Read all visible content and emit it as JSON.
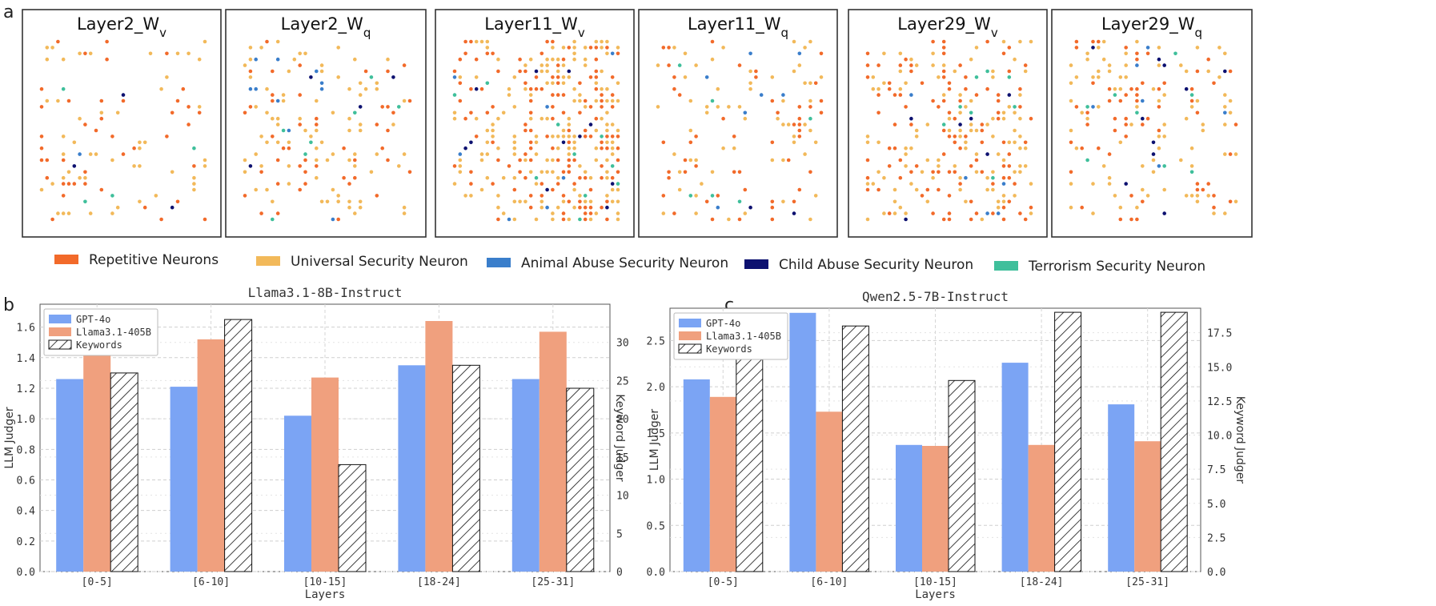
{
  "panel_labels": {
    "a": "a",
    "b": "b",
    "c": "c"
  },
  "colors": {
    "repetitive": "#f26a2a",
    "universal": "#f2b95a",
    "animal": "#3a7ecb",
    "child": "#0d1170",
    "terrorism": "#3fbf9b",
    "gpt4o": "#7ba4f4",
    "llama405": "#f0a07e"
  },
  "panel_a": {
    "layers": [
      {
        "name": "Layer2_W",
        "sub": "v",
        "density": 0.1,
        "extra": 0,
        "seed": 11
      },
      {
        "name": "Layer2_W",
        "sub": "q",
        "density": 0.1,
        "extra": 0,
        "seed": 23
      },
      {
        "name": "Layer11_W",
        "sub": "v",
        "density": 0.2,
        "extra": 0.25,
        "seed": 37
      },
      {
        "name": "Layer11_W",
        "sub": "q",
        "density": 0.12,
        "extra": 0,
        "seed": 41
      },
      {
        "name": "Layer29_W",
        "sub": "v",
        "density": 0.16,
        "extra": 0.12,
        "seed": 53
      },
      {
        "name": "Layer29_W",
        "sub": "q",
        "density": 0.11,
        "extra": 0,
        "seed": 67
      }
    ],
    "legend": [
      {
        "label": "Repetitive Neurons",
        "color": "#f26a2a"
      },
      {
        "label": "Universal Security Neuron",
        "color": "#f2b95a"
      },
      {
        "label": "Animal Abuse Security Neuron",
        "color": "#3a7ecb"
      },
      {
        "label": "Child Abuse Security Neuron",
        "color": "#0d1170"
      },
      {
        "label": "Terrorism Security Neuron",
        "color": "#3fbf9b"
      }
    ]
  },
  "chart_data": [
    {
      "type": "bar",
      "title": "Llama3.1-8B-Instruct",
      "xlabel": "Layers",
      "ylabel": "LLM Judger",
      "ylabel_right": "Keyword Judger",
      "categories": [
        "[0-5]",
        "[6-10]",
        "[10-15]",
        "[18-24]",
        "[25-31]"
      ],
      "ylim": [
        0,
        1.75
      ],
      "yticks": [
        "0.0",
        "0.2",
        "0.4",
        "0.6",
        "0.8",
        "1.0",
        "1.2",
        "1.4",
        "1.6"
      ],
      "ylim_right": [
        0,
        35
      ],
      "yticks_right": [
        "0",
        "5",
        "10",
        "15",
        "20",
        "25",
        "30"
      ],
      "series": [
        {
          "name": "GPT-4o",
          "axis": "left",
          "values": [
            1.26,
            1.21,
            1.02,
            1.35,
            1.26
          ]
        },
        {
          "name": "Llama3.1-405B",
          "axis": "left",
          "values": [
            1.42,
            1.52,
            1.27,
            1.64,
            1.57
          ]
        },
        {
          "name": "Keywords",
          "axis": "right",
          "values": [
            26,
            33,
            14,
            27,
            24
          ]
        }
      ],
      "legend": [
        "GPT-4o",
        "Llama3.1-405B",
        "Keywords"
      ]
    },
    {
      "type": "bar",
      "title": "Qwen2.5-7B-Instruct",
      "xlabel": "Layers",
      "ylabel": "LLM Judger",
      "ylabel_right": "Keyword Judger",
      "categories": [
        "[0-5]",
        "[6-10]",
        "[10-15]",
        "[18-24]",
        "[25-31]"
      ],
      "ylim": [
        0,
        2.85
      ],
      "yticks": [
        "0.0",
        "0.5",
        "1.0",
        "1.5",
        "2.0",
        "2.5"
      ],
      "ylim_right": [
        0,
        19.3
      ],
      "yticks_right": [
        "0.0",
        "2.5",
        "5.0",
        "7.5",
        "10.0",
        "12.5",
        "15.0",
        "17.5"
      ],
      "series": [
        {
          "name": "GPT-4o",
          "axis": "left",
          "values": [
            2.08,
            2.8,
            1.37,
            2.26,
            1.81
          ]
        },
        {
          "name": "Llama3.1-405B",
          "axis": "left",
          "values": [
            1.89,
            1.73,
            1.36,
            1.37,
            1.41
          ]
        },
        {
          "name": "Keywords",
          "axis": "right",
          "values": [
            17,
            18,
            14,
            19,
            19
          ]
        }
      ],
      "legend": [
        "GPT-4o",
        "Llama3.1-405B",
        "Keywords"
      ]
    }
  ]
}
